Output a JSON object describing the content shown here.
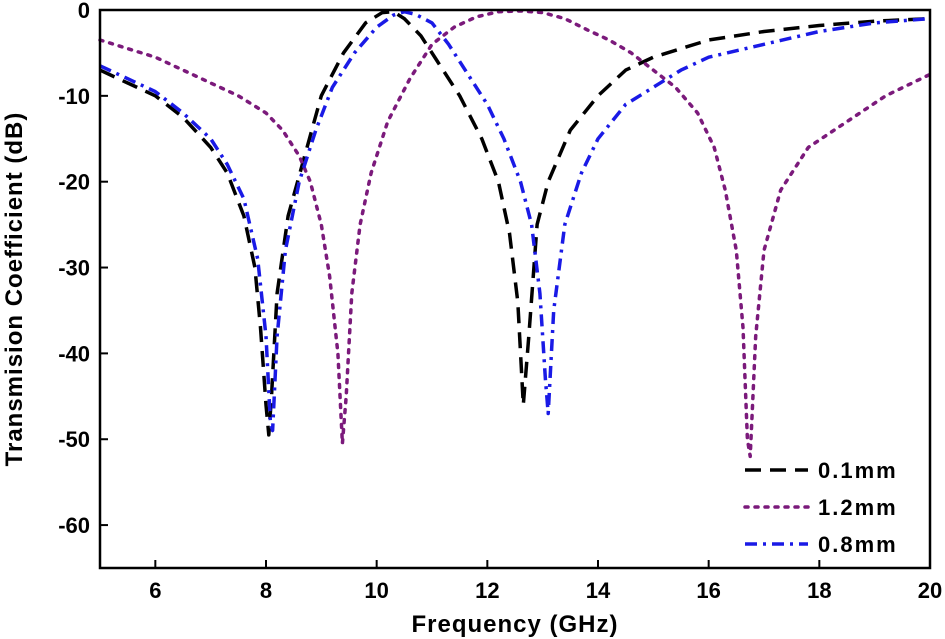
{
  "chart_data": {
    "type": "line",
    "title": "",
    "xlabel": "Frequency (GHz)",
    "ylabel": "Transmision Coefficient (dB)",
    "xlim": [
      5,
      20
    ],
    "ylim": [
      -65,
      0
    ],
    "xticks": [
      6,
      8,
      10,
      12,
      14,
      16,
      18,
      20
    ],
    "yticks": [
      0,
      -10,
      -20,
      -30,
      -40,
      -50,
      -60
    ],
    "grid": false,
    "legend_position": "bottom-right",
    "series": [
      {
        "name": "0.1mm",
        "color": "#000000",
        "dash": "dashed",
        "x": [
          5.0,
          5.5,
          6.0,
          6.5,
          7.0,
          7.3,
          7.6,
          7.8,
          7.9,
          8.0,
          8.05,
          8.1,
          8.2,
          8.4,
          8.7,
          9.0,
          9.4,
          9.8,
          10.1,
          10.3,
          10.5,
          10.8,
          11.1,
          11.5,
          11.9,
          12.2,
          12.4,
          12.55,
          12.65,
          12.75,
          12.9,
          13.1,
          13.5,
          14.0,
          14.5,
          15.0,
          15.5,
          16.0,
          17.0,
          18.0,
          19.0,
          20.0
        ],
        "y": [
          -7,
          -8.5,
          -10,
          -12.5,
          -16,
          -19,
          -24,
          -30,
          -37,
          -46,
          -49.5,
          -45,
          -33,
          -24,
          -17,
          -10,
          -5,
          -1.5,
          -0.3,
          -0.2,
          -1,
          -3,
          -6,
          -10,
          -15,
          -20,
          -26,
          -34,
          -46,
          -38,
          -25,
          -20,
          -14,
          -10,
          -7,
          -5.5,
          -4.5,
          -3.5,
          -2.5,
          -1.8,
          -1.3,
          -1
        ]
      },
      {
        "name": "1.2mm",
        "color": "#7b1a7b",
        "dash": "dotted",
        "x": [
          5.0,
          5.5,
          6.0,
          6.5,
          7.0,
          7.5,
          8.0,
          8.3,
          8.6,
          8.8,
          9.0,
          9.15,
          9.3,
          9.38,
          9.45,
          9.55,
          9.7,
          9.9,
          10.2,
          10.6,
          11.0,
          11.4,
          11.8,
          12.2,
          12.6,
          13.0,
          13.4,
          13.8,
          14.2,
          14.6,
          15.0,
          15.4,
          15.8,
          16.1,
          16.3,
          16.5,
          16.62,
          16.7,
          16.75,
          16.85,
          17.0,
          17.3,
          17.8,
          18.5,
          19.2,
          20.0
        ],
        "y": [
          -3.5,
          -4.5,
          -5.5,
          -7,
          -8.5,
          -10,
          -12,
          -14,
          -17,
          -20,
          -25,
          -31,
          -40,
          -50.5,
          -45,
          -33,
          -25,
          -19,
          -13,
          -8,
          -4,
          -2,
          -0.8,
          -0.2,
          -0.1,
          -0.3,
          -1,
          -2.3,
          -3.5,
          -5,
          -7,
          -9,
          -12,
          -16,
          -21,
          -28,
          -37,
          -50,
          -52,
          -38,
          -28,
          -21,
          -16,
          -13,
          -10,
          -7.5
        ]
      },
      {
        "name": "0.8mm",
        "color": "#1a1ae6",
        "dash": "dashdot",
        "x": [
          5.0,
          5.5,
          6.0,
          6.5,
          7.0,
          7.3,
          7.6,
          7.85,
          8.0,
          8.08,
          8.12,
          8.2,
          8.35,
          8.6,
          8.9,
          9.2,
          9.6,
          10.0,
          10.3,
          10.5,
          10.7,
          11.0,
          11.3,
          11.6,
          12.0,
          12.3,
          12.6,
          12.8,
          12.95,
          13.05,
          13.1,
          13.2,
          13.4,
          13.7,
          14.0,
          14.5,
          15.0,
          15.5,
          16.0,
          17.0,
          18.0,
          19.0,
          20.0
        ],
        "y": [
          -6.5,
          -8,
          -9.5,
          -12,
          -15,
          -18,
          -22,
          -29,
          -38,
          -48,
          -49,
          -38,
          -28,
          -20,
          -14,
          -9,
          -5,
          -2,
          -0.6,
          -0.2,
          -0.5,
          -1.5,
          -4,
          -7,
          -11,
          -15,
          -20,
          -25,
          -33,
          -43,
          -47,
          -35,
          -25,
          -19,
          -15,
          -11,
          -9,
          -7,
          -5.5,
          -4,
          -2.5,
          -1.5,
          -1
        ]
      }
    ]
  }
}
